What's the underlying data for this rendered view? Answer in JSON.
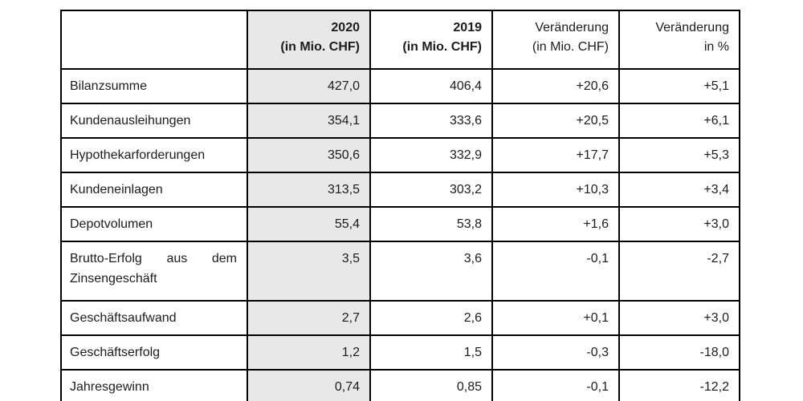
{
  "table": {
    "title_semantics": "Kennzahlen Jahresabschluss",
    "shaded_color": "#e8e8e8",
    "border_color": "#000000",
    "header": {
      "col_label": "",
      "col_2020_line1": "2020",
      "col_2020_line2": "(in Mio. CHF)",
      "col_2019_line1": "2019",
      "col_2019_line2": "(in Mio. CHF)",
      "col_change_line1": "Veränderung",
      "col_change_line2": "(in Mio. CHF)",
      "col_pct_line1": "Veränderung",
      "col_pct_line2": "in %"
    },
    "rows": [
      {
        "label": "Bilanzsumme",
        "v2020": "427,0",
        "v2019": "406,4",
        "change_chf": "+20,6",
        "change_pct": "+5,1"
      },
      {
        "label": "Kundenausleihungen",
        "v2020": "354,1",
        "v2019": "333,6",
        "change_chf": "+20,5",
        "change_pct": "+6,1"
      },
      {
        "label": "Hypothekarforderungen",
        "v2020": "350,6",
        "v2019": "332,9",
        "change_chf": "+17,7",
        "change_pct": "+5,3"
      },
      {
        "label": "Kundeneinlagen",
        "v2020": "313,5",
        "v2019": "303,2",
        "change_chf": "+10,3",
        "change_pct": "+3,4"
      },
      {
        "label": "Depotvolumen",
        "v2020": "55,4",
        "v2019": "53,8",
        "change_chf": "+1,6",
        "change_pct": "+3,0"
      },
      {
        "label": "Brutto-Erfolg aus dem Zinsengeschäft",
        "v2020": "3,5",
        "v2019": "3,6",
        "change_chf": "-0,1",
        "change_pct": "-2,7"
      },
      {
        "label": "Geschäftsaufwand",
        "v2020": "2,7",
        "v2019": "2,6",
        "change_chf": "+0,1",
        "change_pct": "+3,0"
      },
      {
        "label": "Geschäftserfolg",
        "v2020": "1,2",
        "v2019": "1,5",
        "change_chf": "-0,3",
        "change_pct": "-18,0"
      },
      {
        "label": "Jahresgewinn",
        "v2020": "0,74",
        "v2019": "0,85",
        "change_chf": "-0,1",
        "change_pct": "-12,2"
      }
    ]
  }
}
